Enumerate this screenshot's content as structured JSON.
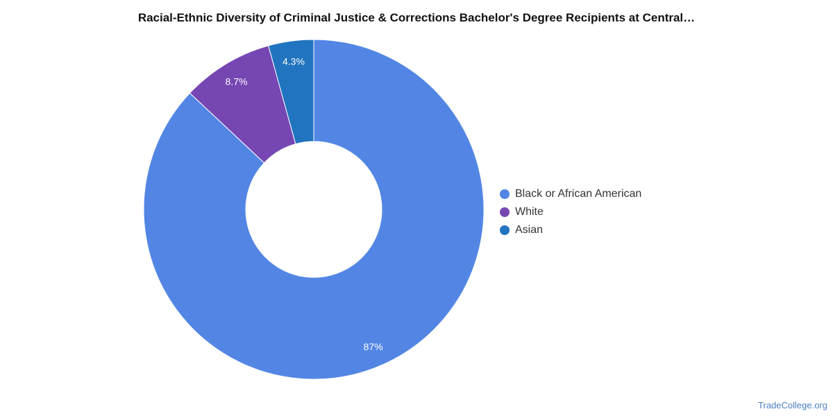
{
  "chart_data": {
    "type": "pie",
    "title": "Racial-Ethnic Diversity of Criminal Justice & Corrections Bachelor's Degree Recipients at Central…",
    "donut": true,
    "legend_position": "right",
    "categories": [
      "Black or African American",
      "White",
      "Asian"
    ],
    "values": [
      87,
      8.7,
      4.3
    ],
    "value_labels": [
      "87%",
      "8.7%",
      "4.3%"
    ],
    "colors": [
      "#5386e4",
      "#7647b2",
      "#2174bf"
    ]
  },
  "source": "TradeCollege.org"
}
